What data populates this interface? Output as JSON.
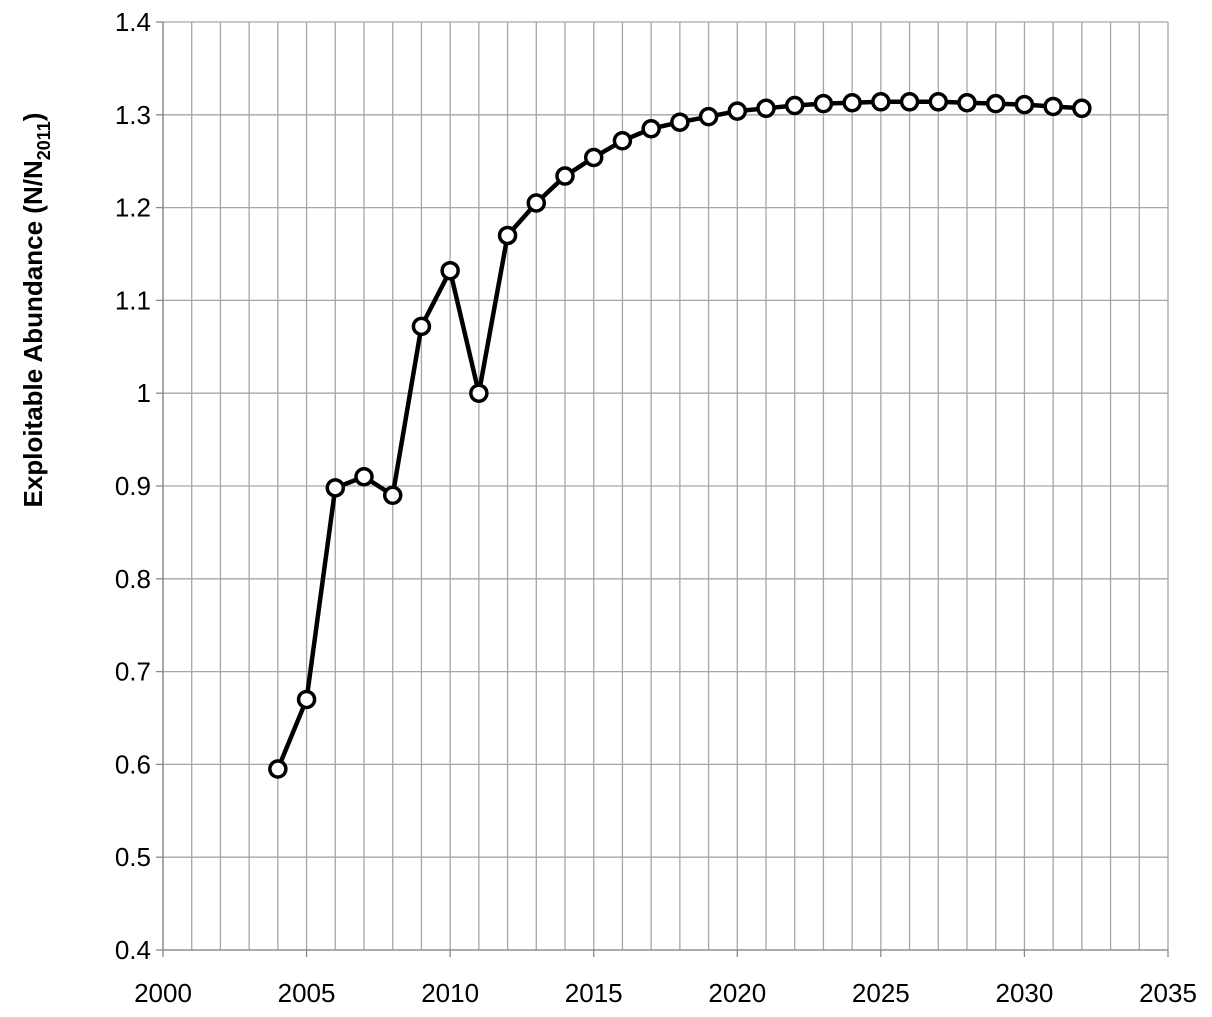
{
  "chart_data": {
    "type": "line",
    "y_label": "Exploitable Abundance (N/N",
    "y_label_sub": "2011",
    "y_label_end": ")",
    "x": [
      2004,
      2005,
      2006,
      2007,
      2008,
      2009,
      2010,
      2011,
      2012,
      2013,
      2014,
      2015,
      2016,
      2017,
      2018,
      2019,
      2020,
      2021,
      2022,
      2023,
      2024,
      2025,
      2026,
      2027,
      2028,
      2029,
      2030,
      2031,
      2032
    ],
    "series": [
      {
        "color": "#000000",
        "marker": "circle",
        "values": [
          0.595,
          0.67,
          0.898,
          0.91,
          0.89,
          1.072,
          1.132,
          1.0,
          1.17,
          1.205,
          1.234,
          1.254,
          1.272,
          1.285,
          1.292,
          1.298,
          1.304,
          1.307,
          1.31,
          1.312,
          1.313,
          1.314,
          1.314,
          1.314,
          1.313,
          1.312,
          1.311,
          1.309,
          1.307
        ]
      }
    ],
    "xlim": [
      2000,
      2035
    ],
    "xticks": [
      2000,
      2005,
      2010,
      2015,
      2020,
      2025,
      2030,
      2035
    ],
    "ylim": [
      0.4,
      1.4
    ],
    "yticks": [
      0.4,
      0.5,
      0.6,
      0.7,
      0.8,
      0.9,
      1,
      1.1,
      1.2,
      1.3,
      1.4
    ],
    "grid": true,
    "x_minor_grid_step": 1
  }
}
